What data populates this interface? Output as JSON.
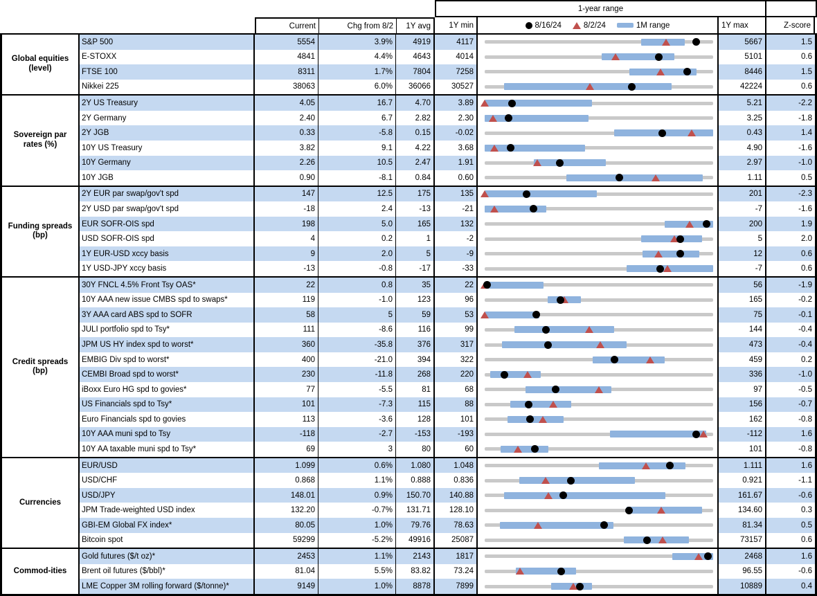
{
  "header": {
    "columns": {
      "current": "Current",
      "chg": "Chg from 8/2",
      "avg": "1Y avg",
      "min": "1Y min",
      "max": "1Y max",
      "z": "Z-score"
    },
    "legend": {
      "dot": "8/16/24",
      "triangle": "8/2/24",
      "bar": "1M range"
    }
  },
  "colors": {
    "stripe_blue": "#c5d9f1",
    "range_bar_blue": "#8fb3de",
    "range_line_gray": "#c9c9c9",
    "triangle_red": "#c0504d",
    "dot_black": "#000000"
  },
  "chart_data": {
    "type": "bullet-range-table",
    "title": "1-year range",
    "marker_series": [
      "8/16/24 (black dot)",
      "8/2/24 (red triangle)",
      "1M range (blue bar)"
    ],
    "axis_note": "each row's gray line spans 1Y min to 1Y max; fractions are position within that span",
    "sections": [
      {
        "name": "Global equities (level)",
        "rows": [
          {
            "label": "S&P 500",
            "current": "5554",
            "chg": "3.9%",
            "avg": "4919",
            "min": "4117",
            "max": "5667",
            "z": "1.5",
            "dot_f": 0.927,
            "tri_f": 0.793,
            "bar_f": [
              0.685,
              0.877
            ]
          },
          {
            "label": "E-STOXX",
            "current": "4841",
            "chg": "4.4%",
            "avg": "4643",
            "min": "4014",
            "max": "5101",
            "z": "0.6",
            "dot_f": 0.761,
            "tri_f": 0.573,
            "bar_f": [
              0.513,
              0.829
            ]
          },
          {
            "label": "FTSE 100",
            "current": "8311",
            "chg": "1.7%",
            "avg": "7804",
            "min": "7258",
            "max": "8446",
            "z": "1.5",
            "dot_f": 0.886,
            "tri_f": 0.769,
            "bar_f": [
              0.633,
              0.928
            ]
          },
          {
            "label": "Nikkei 225",
            "current": "38063",
            "chg": "6.0%",
            "avg": "36066",
            "min": "30527",
            "max": "42224",
            "z": "0.6",
            "dot_f": 0.644,
            "tri_f": 0.46,
            "bar_f": [
              0.084,
              0.817
            ]
          }
        ]
      },
      {
        "name": "Sovereign par rates (%)",
        "rows": [
          {
            "label": "2Y US Treasury",
            "current": "4.05",
            "chg": "16.7",
            "avg": "4.70",
            "min": "3.89",
            "max": "5.21",
            "z": "-2.2",
            "dot_f": 0.121,
            "tri_f": 0.0,
            "bar_f": [
              0.0,
              0.47
            ]
          },
          {
            "label": "2Y Germany",
            "current": "2.40",
            "chg": "6.7",
            "avg": "2.82",
            "min": "2.30",
            "max": "3.25",
            "z": "-1.8",
            "dot_f": 0.105,
            "tri_f": 0.035,
            "bar_f": [
              0.0,
              0.455
            ]
          },
          {
            "label": "2Y JGB",
            "current": "0.33",
            "chg": "-5.8",
            "avg": "0.15",
            "min": "-0.02",
            "max": "0.43",
            "z": "1.4",
            "dot_f": 0.778,
            "tri_f": 0.907,
            "bar_f": [
              0.568,
              1.0
            ]
          },
          {
            "label": "10Y US Treasury",
            "current": "3.82",
            "chg": "9.1",
            "avg": "4.22",
            "min": "3.68",
            "max": "4.90",
            "z": "-1.6",
            "dot_f": 0.115,
            "tri_f": 0.041,
            "bar_f": [
              0.0,
              0.44
            ]
          },
          {
            "label": "10Y Germany",
            "current": "2.26",
            "chg": "10.5",
            "avg": "2.47",
            "min": "1.91",
            "max": "2.97",
            "z": "-1.0",
            "dot_f": 0.33,
            "tri_f": 0.231,
            "bar_f": [
              0.215,
              0.53
            ]
          },
          {
            "label": "10Y JGB",
            "current": "0.90",
            "chg": "-8.1",
            "avg": "0.84",
            "min": "0.60",
            "max": "1.11",
            "z": "0.5",
            "dot_f": 0.588,
            "tri_f": 0.747,
            "bar_f": [
              0.357,
              0.955
            ]
          }
        ]
      },
      {
        "name": "Funding spreads (bp)",
        "rows": [
          {
            "label": "2Y EUR par swap/gov't spd",
            "current": "147",
            "chg": "12.5",
            "avg": "175",
            "min": "135",
            "max": "201",
            "z": "-2.3",
            "dot_f": 0.182,
            "tri_f": 0.0,
            "bar_f": [
              0.0,
              0.49
            ]
          },
          {
            "label": "2Y USD par swap/gov't spd",
            "current": "-18",
            "chg": "2.4",
            "avg": "-13",
            "min": "-21",
            "max": "-7",
            "z": "-1.6",
            "dot_f": 0.214,
            "tri_f": 0.043,
            "bar_f": [
              0.0,
              0.27
            ]
          },
          {
            "label": "EUR SOFR-OIS spd",
            "current": "198",
            "chg": "5.0",
            "avg": "165",
            "min": "132",
            "max": "200",
            "z": "1.9",
            "dot_f": 0.971,
            "tri_f": 0.897,
            "bar_f": [
              0.787,
              1.0
            ]
          },
          {
            "label": "USD SOFR-OIS spd",
            "current": "4",
            "chg": "0.2",
            "avg": "1",
            "min": "-2",
            "max": "5",
            "z": "2.0",
            "dot_f": 0.857,
            "tri_f": 0.829,
            "bar_f": [
              0.685,
              0.952
            ]
          },
          {
            "label": "1Y EUR-USD xccy basis",
            "current": "9",
            "chg": "2.0",
            "avg": "5",
            "min": "-9",
            "max": "12",
            "z": "0.6",
            "dot_f": 0.857,
            "tri_f": 0.762,
            "bar_f": [
              0.691,
              0.94
            ]
          },
          {
            "label": "1Y USD-JPY xccy basis",
            "current": "-13",
            "chg": "-0.8",
            "avg": "-17",
            "min": "-33",
            "max": "-7",
            "z": "0.6",
            "dot_f": 0.769,
            "tri_f": 0.8,
            "bar_f": [
              0.622,
              1.0
            ]
          }
        ]
      },
      {
        "name": "Credit spreads (bp)",
        "rows": [
          {
            "label": "30Y FNCL 4.5% Front Tsy OAS*",
            "current": "22",
            "chg": "0.8",
            "avg": "35",
            "min": "22",
            "max": "56",
            "z": "-1.9",
            "dot_f": 0.012,
            "tri_f": 0.0,
            "bar_f": [
              0.0,
              0.258
            ]
          },
          {
            "label": "10Y AAA new issue CMBS spd to swaps*",
            "current": "119",
            "chg": "-1.0",
            "avg": "123",
            "min": "96",
            "max": "165",
            "z": "-0.2",
            "dot_f": 0.333,
            "tri_f": 0.348,
            "bar_f": [
              0.276,
              0.42
            ]
          },
          {
            "label": "3Y AAA card ABS spd to SOFR",
            "current": "58",
            "chg": "5",
            "avg": "59",
            "min": "53",
            "max": "75",
            "z": "-0.1",
            "dot_f": 0.227,
            "tri_f": 0.0,
            "bar_f": [
              0.0,
              0.24
            ]
          },
          {
            "label": "JULI portfolio spd to Tsy*",
            "current": "111",
            "chg": "-8.6",
            "avg": "116",
            "min": "99",
            "max": "144",
            "z": "-0.4",
            "dot_f": 0.267,
            "tri_f": 0.458,
            "bar_f": [
              0.129,
              0.568
            ]
          },
          {
            "label": "JPM US HY index spd to worst*",
            "current": "360",
            "chg": "-35.8",
            "avg": "376",
            "min": "317",
            "max": "473",
            "z": "-0.4",
            "dot_f": 0.276,
            "tri_f": 0.505,
            "bar_f": [
              0.075,
              0.622
            ]
          },
          {
            "label": "EMBIG Div spd to worst*",
            "current": "400",
            "chg": "-21.0",
            "avg": "394",
            "min": "322",
            "max": "459",
            "z": "0.2",
            "dot_f": 0.569,
            "tri_f": 0.723,
            "bar_f": [
              0.474,
              0.787
            ]
          },
          {
            "label": "CEMBI Broad spd to worst*",
            "current": "230",
            "chg": "-11.8",
            "avg": "268",
            "min": "220",
            "max": "336",
            "z": "-1.0",
            "dot_f": 0.086,
            "tri_f": 0.188,
            "bar_f": [
              0.024,
              0.246
            ]
          },
          {
            "label": "iBoxx Euro HG spd to govies*",
            "current": "77",
            "chg": "-5.5",
            "avg": "81",
            "min": "68",
            "max": "97",
            "z": "-0.5",
            "dot_f": 0.31,
            "tri_f": 0.5,
            "bar_f": [
              0.18,
              0.556
            ]
          },
          {
            "label": "US Financials spd to Tsy*",
            "current": "101",
            "chg": "-7.3",
            "avg": "115",
            "min": "88",
            "max": "156",
            "z": "-0.7",
            "dot_f": 0.191,
            "tri_f": 0.299,
            "bar_f": [
              0.111,
              0.378
            ]
          },
          {
            "label": "Euro Financials spd to govies",
            "current": "113",
            "chg": "-3.6",
            "avg": "128",
            "min": "101",
            "max": "162",
            "z": "-0.8",
            "dot_f": 0.197,
            "tri_f": 0.256,
            "bar_f": [
              0.099,
              0.345
            ]
          },
          {
            "label": "10Y AAA muni spd to Tsy",
            "current": "-118",
            "chg": "-2.7",
            "avg": "-153",
            "min": "-193",
            "max": "-112",
            "z": "1.6",
            "dot_f": 0.926,
            "tri_f": 0.959,
            "bar_f": [
              0.547,
              0.97
            ]
          },
          {
            "label": "10Y AA taxable muni spd to Tsy*",
            "current": "69",
            "chg": "3",
            "avg": "80",
            "min": "60",
            "max": "101",
            "z": "-0.8",
            "dot_f": 0.22,
            "tri_f": 0.146,
            "bar_f": [
              0.069,
              0.279
            ]
          }
        ]
      },
      {
        "name": "Currencies",
        "rows": [
          {
            "label": "EUR/USD",
            "current": "1.099",
            "chg": "0.6%",
            "avg": "1.080",
            "min": "1.048",
            "max": "1.111",
            "z": "1.6",
            "dot_f": 0.81,
            "tri_f": 0.705,
            "bar_f": [
              0.501,
              0.88
            ]
          },
          {
            "label": "USD/CHF",
            "current": "0.868",
            "chg": "1.1%",
            "avg": "0.888",
            "min": "0.836",
            "max": "0.921",
            "z": "-1.1",
            "dot_f": 0.376,
            "tri_f": 0.266,
            "bar_f": [
              0.15,
              0.658
            ]
          },
          {
            "label": "USD/JPY",
            "current": "148.01",
            "chg": "0.9%",
            "avg": "150.70",
            "min": "140.88",
            "max": "161.67",
            "z": "-0.6",
            "dot_f": 0.343,
            "tri_f": 0.279,
            "bar_f": [
              0.084,
              0.79
            ]
          },
          {
            "label": "JPM Trade-weighted USD index",
            "current": "132.20",
            "chg": "-0.7%",
            "avg": "131.71",
            "min": "128.10",
            "max": "134.60",
            "z": "0.3",
            "dot_f": 0.631,
            "tri_f": 0.774,
            "bar_f": [
              0.622,
              0.952
            ]
          },
          {
            "label": "GBI-EM Global FX index*",
            "current": "80.05",
            "chg": "1.0%",
            "avg": "79.76",
            "min": "78.63",
            "max": "81.34",
            "z": "0.5",
            "dot_f": 0.524,
            "tri_f": 0.232,
            "bar_f": [
              0.066,
              0.565
            ]
          },
          {
            "label": "Bitcoin spot",
            "current": "59299",
            "chg": "-5.2%",
            "avg": "49916",
            "min": "25087",
            "max": "73157",
            "z": "0.6",
            "dot_f": 0.712,
            "tri_f": 0.779,
            "bar_f": [
              0.61,
              0.895
            ]
          }
        ]
      },
      {
        "name": "Commod-ities",
        "rows": [
          {
            "label": "Gold futures ($/t oz)*",
            "current": "2453",
            "chg": "1.1%",
            "avg": "2143",
            "min": "1817",
            "max": "2468",
            "z": "1.6",
            "dot_f": 0.977,
            "tri_f": 0.936,
            "bar_f": [
              0.82,
              1.0
            ]
          },
          {
            "label": "Brent oil futures ($/bbl)*",
            "current": "81.04",
            "chg": "5.5%",
            "avg": "83.82",
            "min": "73.24",
            "max": "96.55",
            "z": "-0.6",
            "dot_f": 0.335,
            "tri_f": 0.154,
            "bar_f": [
              0.135,
              0.399
            ]
          },
          {
            "label": "LME Copper 3M rolling forward ($/tonne)*",
            "current": "9149",
            "chg": "1.0%",
            "avg": "8878",
            "min": "7899",
            "max": "10889",
            "z": "0.4",
            "dot_f": 0.418,
            "tri_f": 0.388,
            "bar_f": [
              0.291,
              0.471
            ]
          }
        ]
      }
    ]
  }
}
